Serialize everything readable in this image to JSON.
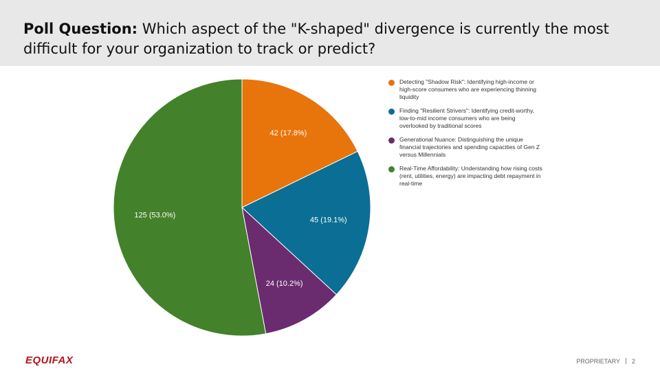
{
  "header": {
    "title_lead": "Poll Question:",
    "title": "Which aspect of the \"K-shaped\" divergence is currently the most difficult for your organization to track or predict?"
  },
  "chart_data": {
    "type": "pie",
    "categories": [
      "Detecting \"Shadow Risk\": Identifying high-income or high-score consumers who are experiencing thinning liquidity",
      "Finding \"Resilient Strivers\": Identifying credit-worthy, low-to-mid income consumers who are being overlooked by traditional scores",
      "Generational Nuance: Distinguishing the unique financial trajectories and spending capacities of Gen Z versus Millennials",
      "Real-Time Affordability: Understanding how rising costs (rent, utilities, energy) are impacting debt repayment in real-time"
    ],
    "values": [
      42,
      45,
      24,
      125
    ],
    "value_labels": [
      "42 (17.8%)",
      "45 (19.1%)",
      "24 (10.2%)",
      "125 (53.0%)"
    ],
    "colors": [
      "#e8740c",
      "#0b6e94",
      "#6a2c6e",
      "#43812b"
    ],
    "legend": "right"
  },
  "footer": {
    "logo": "EQUIFAX",
    "label": "PROPRIETARY",
    "page": "2"
  }
}
